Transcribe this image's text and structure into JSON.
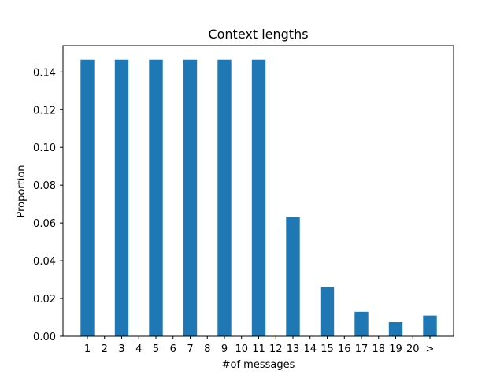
{
  "chart_data": {
    "type": "bar",
    "title": "Context lengths",
    "xlabel": "#of messages",
    "ylabel": "Proportion",
    "categories": [
      "1",
      "2",
      "3",
      "4",
      "5",
      "6",
      "7",
      "8",
      "9",
      "10",
      "11",
      "12",
      "13",
      "14",
      "15",
      "16",
      "17",
      "18",
      "19",
      "20",
      ">"
    ],
    "values": [
      0.1465,
      0,
      0.1465,
      0,
      0.1465,
      0,
      0.1465,
      0,
      0.1465,
      0,
      0.1465,
      0,
      0.063,
      0,
      0.026,
      0,
      0.013,
      0,
      0.0075,
      0,
      0.011
    ],
    "ylim": [
      0,
      0.1539
    ],
    "yticks": [
      "0.00",
      "0.02",
      "0.04",
      "0.06",
      "0.08",
      "0.10",
      "0.12",
      "0.14"
    ],
    "bar_color": "#1f77b4",
    "grid": false,
    "legend": "none"
  }
}
